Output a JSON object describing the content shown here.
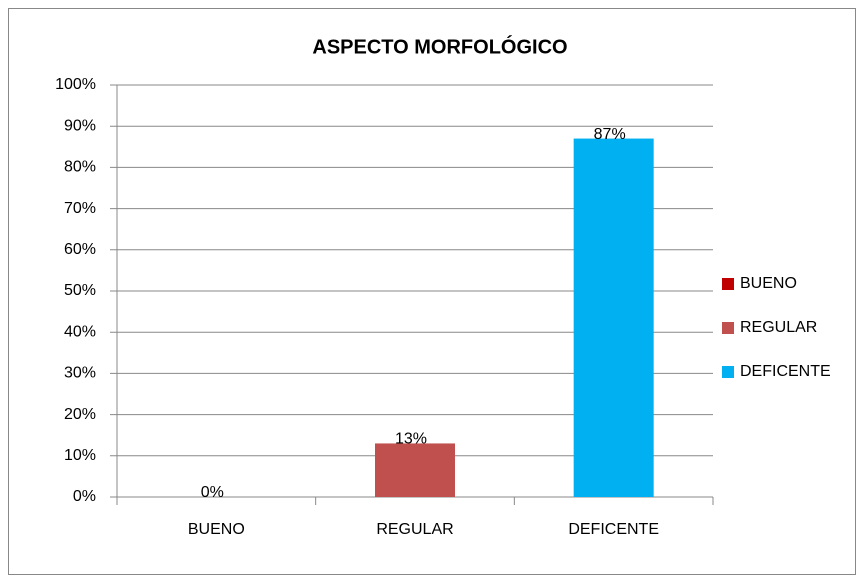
{
  "chart_data": {
    "type": "bar",
    "title": "ASPECTO MORFOLÓGICO",
    "categories": [
      "BUENO",
      "REGULAR",
      "DEFICENTE"
    ],
    "values": [
      0,
      13,
      87
    ],
    "value_labels": [
      "0%",
      "13%",
      "87%"
    ],
    "colors": [
      "#c00000",
      "#c0504d",
      "#00b0f0"
    ],
    "ylim": [
      0,
      100
    ],
    "yticks": [
      {
        "value": 0,
        "label": "0%"
      },
      {
        "value": 10,
        "label": "10%"
      },
      {
        "value": 20,
        "label": "20%"
      },
      {
        "value": 30,
        "label": "30%"
      },
      {
        "value": 40,
        "label": "40%"
      },
      {
        "value": 50,
        "label": "50%"
      },
      {
        "value": 60,
        "label": "60%"
      },
      {
        "value": 70,
        "label": "70%"
      },
      {
        "value": 80,
        "label": "80%"
      },
      {
        "value": 90,
        "label": "90%"
      },
      {
        "value": 100,
        "label": "100%"
      }
    ],
    "grid": true,
    "legend": "right"
  }
}
